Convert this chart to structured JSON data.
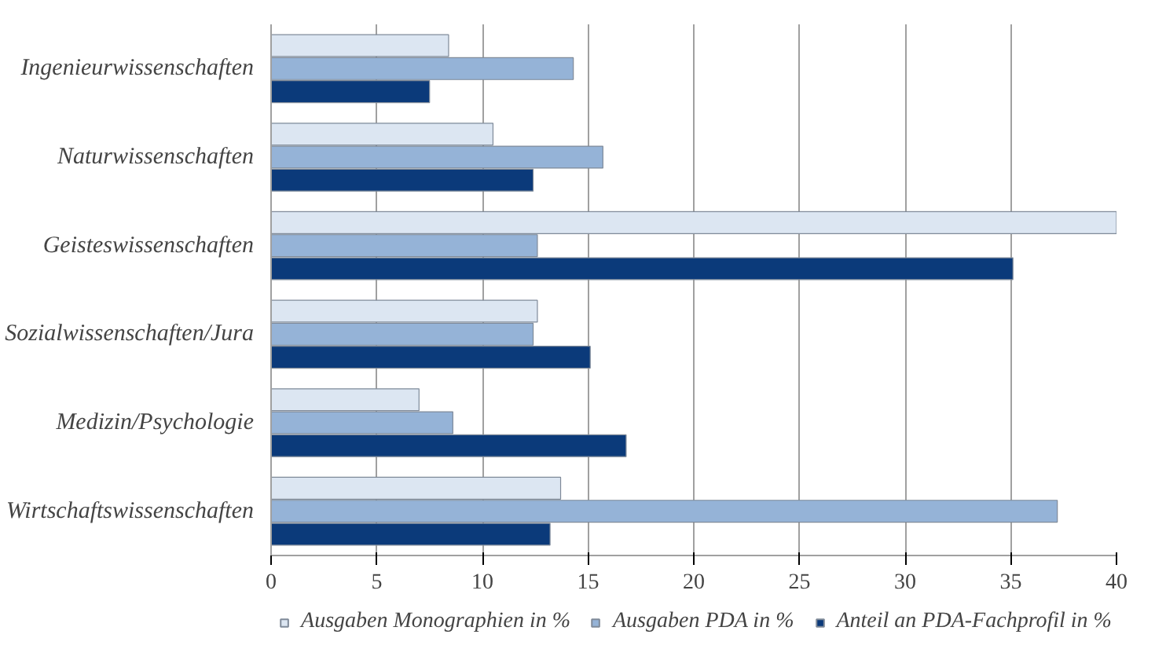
{
  "chart_data": {
    "type": "bar",
    "orientation": "horizontal",
    "categories": [
      "Ingenieurwissenschaften",
      "Naturwissenschaften",
      "Geisteswissenschaften",
      "Sozialwissenschaften/Jura",
      "Medizin/Psychologie",
      "Wirtschaftswissenschaften"
    ],
    "series": [
      {
        "name": "Ausgaben Monographien in %",
        "color": "#dce6f2",
        "values": [
          8.4,
          10.5,
          40,
          12.6,
          7.0,
          13.7
        ]
      },
      {
        "name": "Ausgaben PDA in %",
        "color": "#95b3d7",
        "values": [
          14.3,
          15.7,
          12.6,
          12.4,
          8.6,
          37.2
        ]
      },
      {
        "name": "Anteil an PDA-Fachprofil in %",
        "color": "#0b3a7a",
        "values": [
          7.5,
          12.4,
          35.1,
          15.1,
          16.8,
          13.2
        ]
      }
    ],
    "xlim": [
      0,
      40
    ],
    "xticks": [
      0,
      5,
      10,
      15,
      20,
      25,
      30,
      35,
      40
    ],
    "grid": "x",
    "legend": "bottom"
  }
}
